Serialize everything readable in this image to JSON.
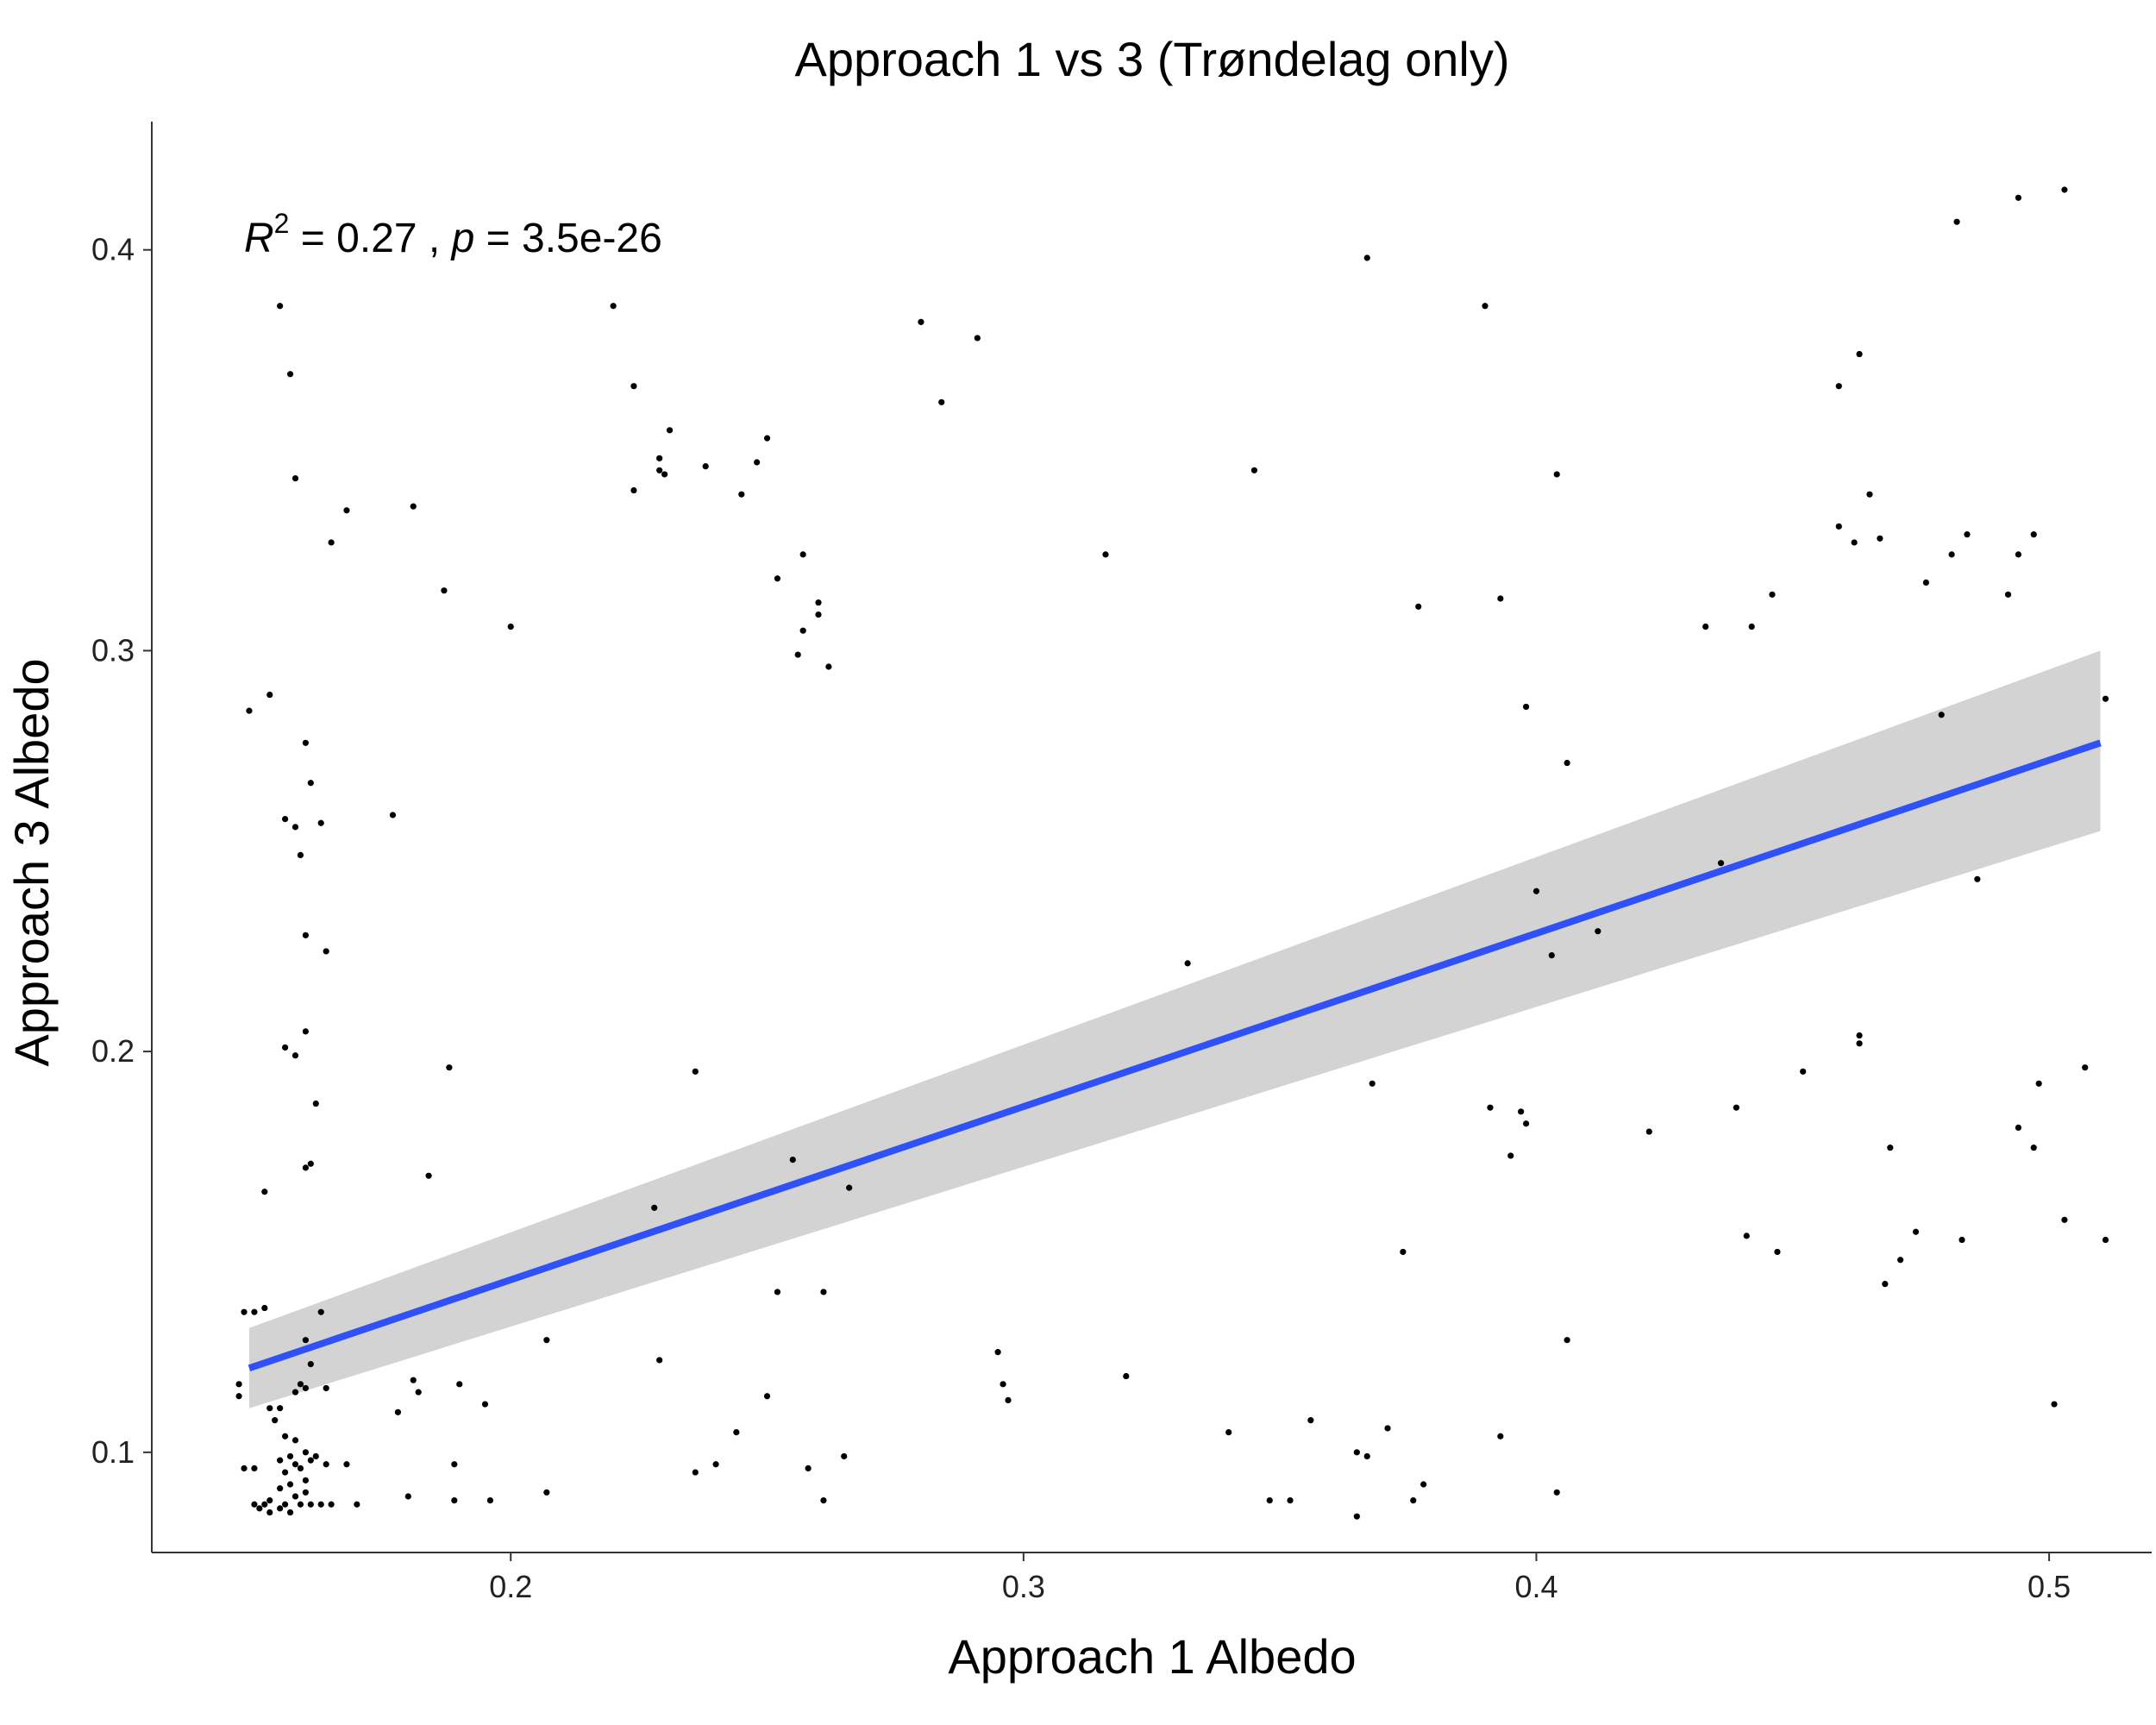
{
  "chart_data": {
    "type": "scatter",
    "title": "Approach 1 vs 3 (Trøndelag only)",
    "xlabel": "Approach 1 Albedo",
    "ylabel": "Approach 3 Albedo",
    "xlim": [
      0.13,
      0.52
    ],
    "ylim": [
      0.075,
      0.432
    ],
    "x_ticks": [
      0.2,
      0.3,
      0.4,
      0.5
    ],
    "y_ticks": [
      0.1,
      0.2,
      0.3,
      0.4
    ],
    "x_tick_labels": [
      "0.2",
      "0.3",
      "0.4",
      "0.5"
    ],
    "y_tick_labels": [
      "0.1",
      "0.2",
      "0.3",
      "0.4"
    ],
    "grid": false,
    "point_color": "#000000",
    "fit_color": "#3050f8",
    "band_color": "#d3d3d3",
    "annotation": {
      "r_symbol": "R",
      "r_exponent": "2",
      "r_value": " = 0.27 , ",
      "p_symbol": "p",
      "p_value": " = 3.5e-26"
    },
    "fit": {
      "x": [
        0.149,
        0.51
      ],
      "y": [
        0.121,
        0.277
      ],
      "ci_lower": [
        0.111,
        0.255
      ],
      "ci_upper": [
        0.131,
        0.3
      ]
    },
    "points": [
      [
        0.155,
        0.386
      ],
      [
        0.157,
        0.369
      ],
      [
        0.158,
        0.343
      ],
      [
        0.165,
        0.327
      ],
      [
        0.168,
        0.335
      ],
      [
        0.181,
        0.336
      ],
      [
        0.187,
        0.315
      ],
      [
        0.2,
        0.306
      ],
      [
        0.149,
        0.285
      ],
      [
        0.153,
        0.289
      ],
      [
        0.16,
        0.277
      ],
      [
        0.161,
        0.267
      ],
      [
        0.156,
        0.258
      ],
      [
        0.158,
        0.256
      ],
      [
        0.163,
        0.257
      ],
      [
        0.159,
        0.249
      ],
      [
        0.177,
        0.259
      ],
      [
        0.16,
        0.229
      ],
      [
        0.164,
        0.225
      ],
      [
        0.16,
        0.205
      ],
      [
        0.156,
        0.201
      ],
      [
        0.158,
        0.199
      ],
      [
        0.162,
        0.187
      ],
      [
        0.188,
        0.196
      ],
      [
        0.161,
        0.172
      ],
      [
        0.16,
        0.171
      ],
      [
        0.152,
        0.165
      ],
      [
        0.184,
        0.169
      ],
      [
        0.191,
        0.139
      ],
      [
        0.163,
        0.135
      ],
      [
        0.148,
        0.135
      ],
      [
        0.15,
        0.135
      ],
      [
        0.152,
        0.136
      ],
      [
        0.16,
        0.128
      ],
      [
        0.161,
        0.122
      ],
      [
        0.159,
        0.117
      ],
      [
        0.16,
        0.116
      ],
      [
        0.158,
        0.115
      ],
      [
        0.147,
        0.117
      ],
      [
        0.147,
        0.114
      ],
      [
        0.164,
        0.116
      ],
      [
        0.181,
        0.118
      ],
      [
        0.182,
        0.115
      ],
      [
        0.19,
        0.117
      ],
      [
        0.178,
        0.11
      ],
      [
        0.195,
        0.112
      ],
      [
        0.153,
        0.111
      ],
      [
        0.155,
        0.111
      ],
      [
        0.154,
        0.108
      ],
      [
        0.156,
        0.104
      ],
      [
        0.158,
        0.103
      ],
      [
        0.16,
        0.1
      ],
      [
        0.161,
        0.098
      ],
      [
        0.162,
        0.099
      ],
      [
        0.157,
        0.099
      ],
      [
        0.155,
        0.098
      ],
      [
        0.158,
        0.097
      ],
      [
        0.159,
        0.096
      ],
      [
        0.156,
        0.095
      ],
      [
        0.16,
        0.093
      ],
      [
        0.157,
        0.092
      ],
      [
        0.155,
        0.091
      ],
      [
        0.16,
        0.09
      ],
      [
        0.158,
        0.089
      ],
      [
        0.153,
        0.088
      ],
      [
        0.156,
        0.087
      ],
      [
        0.159,
        0.087
      ],
      [
        0.161,
        0.087
      ],
      [
        0.163,
        0.087
      ],
      [
        0.165,
        0.087
      ],
      [
        0.152,
        0.087
      ],
      [
        0.151,
        0.086
      ],
      [
        0.153,
        0.085
      ],
      [
        0.155,
        0.086
      ],
      [
        0.157,
        0.085
      ],
      [
        0.15,
        0.087
      ],
      [
        0.148,
        0.096
      ],
      [
        0.15,
        0.096
      ],
      [
        0.168,
        0.097
      ],
      [
        0.164,
        0.097
      ],
      [
        0.17,
        0.087
      ],
      [
        0.18,
        0.089
      ],
      [
        0.189,
        0.097
      ],
      [
        0.189,
        0.088
      ],
      [
        0.196,
        0.088
      ],
      [
        0.207,
        0.09
      ],
      [
        0.207,
        0.128
      ],
      [
        0.22,
        0.386
      ],
      [
        0.224,
        0.366
      ],
      [
        0.224,
        0.34
      ],
      [
        0.231,
        0.355
      ],
      [
        0.229,
        0.348
      ],
      [
        0.229,
        0.345
      ],
      [
        0.23,
        0.344
      ],
      [
        0.238,
        0.346
      ],
      [
        0.245,
        0.339
      ],
      [
        0.248,
        0.347
      ],
      [
        0.25,
        0.353
      ],
      [
        0.252,
        0.318
      ],
      [
        0.257,
        0.324
      ],
      [
        0.26,
        0.312
      ],
      [
        0.26,
        0.309
      ],
      [
        0.257,
        0.305
      ],
      [
        0.256,
        0.299
      ],
      [
        0.262,
        0.296
      ],
      [
        0.28,
        0.382
      ],
      [
        0.291,
        0.378
      ],
      [
        0.284,
        0.362
      ],
      [
        0.316,
        0.324
      ],
      [
        0.228,
        0.161
      ],
      [
        0.236,
        0.195
      ],
      [
        0.255,
        0.173
      ],
      [
        0.266,
        0.166
      ],
      [
        0.252,
        0.14
      ],
      [
        0.261,
        0.14
      ],
      [
        0.229,
        0.123
      ],
      [
        0.25,
        0.114
      ],
      [
        0.244,
        0.105
      ],
      [
        0.24,
        0.097
      ],
      [
        0.236,
        0.095
      ],
      [
        0.258,
        0.096
      ],
      [
        0.265,
        0.099
      ],
      [
        0.261,
        0.088
      ],
      [
        0.295,
        0.125
      ],
      [
        0.296,
        0.117
      ],
      [
        0.297,
        0.113
      ],
      [
        0.32,
        0.119
      ],
      [
        0.332,
        0.222
      ],
      [
        0.34,
        0.105
      ],
      [
        0.348,
        0.088
      ],
      [
        0.352,
        0.088
      ],
      [
        0.356,
        0.108
      ],
      [
        0.365,
        0.1
      ],
      [
        0.367,
        0.099
      ],
      [
        0.365,
        0.084
      ],
      [
        0.367,
        0.398
      ],
      [
        0.345,
        0.345
      ],
      [
        0.368,
        0.192
      ],
      [
        0.374,
        0.15
      ],
      [
        0.376,
        0.088
      ],
      [
        0.378,
        0.092
      ],
      [
        0.371,
        0.106
      ],
      [
        0.377,
        0.311
      ],
      [
        0.39,
        0.386
      ],
      [
        0.393,
        0.313
      ],
      [
        0.398,
        0.286
      ],
      [
        0.404,
        0.344
      ],
      [
        0.406,
        0.272
      ],
      [
        0.4,
        0.24
      ],
      [
        0.403,
        0.224
      ],
      [
        0.412,
        0.23
      ],
      [
        0.391,
        0.186
      ],
      [
        0.397,
        0.185
      ],
      [
        0.398,
        0.182
      ],
      [
        0.395,
        0.174
      ],
      [
        0.406,
        0.128
      ],
      [
        0.393,
        0.104
      ],
      [
        0.404,
        0.09
      ],
      [
        0.422,
        0.18
      ],
      [
        0.433,
        0.306
      ],
      [
        0.442,
        0.306
      ],
      [
        0.446,
        0.314
      ],
      [
        0.436,
        0.247
      ],
      [
        0.439,
        0.186
      ],
      [
        0.441,
        0.154
      ],
      [
        0.447,
        0.15
      ],
      [
        0.452,
        0.195
      ],
      [
        0.459,
        0.366
      ],
      [
        0.463,
        0.374
      ],
      [
        0.459,
        0.331
      ],
      [
        0.462,
        0.327
      ],
      [
        0.465,
        0.339
      ],
      [
        0.467,
        0.328
      ],
      [
        0.463,
        0.202
      ],
      [
        0.463,
        0.204
      ],
      [
        0.469,
        0.176
      ],
      [
        0.468,
        0.142
      ],
      [
        0.471,
        0.148
      ],
      [
        0.474,
        0.155
      ],
      [
        0.476,
        0.317
      ],
      [
        0.479,
        0.284
      ],
      [
        0.481,
        0.324
      ],
      [
        0.484,
        0.329
      ],
      [
        0.482,
        0.407
      ],
      [
        0.494,
        0.413
      ],
      [
        0.503,
        0.415
      ],
      [
        0.494,
        0.324
      ],
      [
        0.497,
        0.329
      ],
      [
        0.492,
        0.314
      ],
      [
        0.486,
        0.243
      ],
      [
        0.483,
        0.153
      ],
      [
        0.494,
        0.181
      ],
      [
        0.497,
        0.176
      ],
      [
        0.498,
        0.192
      ],
      [
        0.507,
        0.196
      ],
      [
        0.503,
        0.158
      ],
      [
        0.511,
        0.153
      ],
      [
        0.511,
        0.288
      ],
      [
        0.501,
        0.112
      ]
    ]
  }
}
